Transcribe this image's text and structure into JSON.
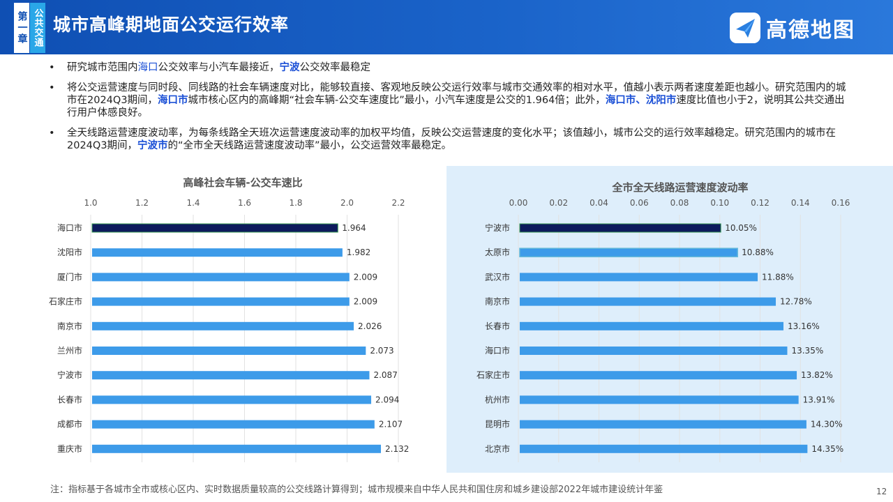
{
  "header": {
    "chapter_label": "第一章",
    "section_label": "公共交通",
    "title": "城市高峰期地面公交运行效率",
    "logo_text": "高德地图",
    "logo_icon": "gaode-map-logo-icon"
  },
  "bullets": [
    {
      "parts": [
        {
          "text": "研究城市范围内",
          "style": "normal"
        },
        {
          "text": "海口",
          "style": "blue"
        },
        {
          "text": "公交效率与小汽车最接近，",
          "style": "normal"
        },
        {
          "text": "宁波",
          "style": "bold-blue"
        },
        {
          "text": "公交效率最稳定",
          "style": "normal"
        }
      ]
    },
    {
      "parts": [
        {
          "text": "将公交运营速度与同时段、同线路的社会车辆速度对比，能够较直接、客观地反映公交运行效率与城市交通效率的相对水平，值越小表示两者速度差距也越小。研究范围内的城市在2024Q3期间，",
          "style": "normal"
        },
        {
          "text": "海口市",
          "style": "bold-blue"
        },
        {
          "text": "城市核心区内的高峰期“社会车辆-公交车速度比”最小，小汽车速度是公交的1.964倍；此外，",
          "style": "normal"
        },
        {
          "text": "海口市、沈阳市",
          "style": "bold-blue"
        },
        {
          "text": "速度比值也小于2，说明其公共交通出行用户体感良好。",
          "style": "normal"
        }
      ]
    },
    {
      "parts": [
        {
          "text": "全天线路运营速度波动率，为每条线路全天班次运营速度波动率的加权平均值，反映公交运营速度的变化水平；该值越小，城市公交的运行效率越稳定。研究范围内的城市在2024Q3期间，",
          "style": "normal"
        },
        {
          "text": "宁波市",
          "style": "bold-blue"
        },
        {
          "text": "的“全市全天线路运营速度波动率”最小，公交运营效率最稳定。",
          "style": "normal"
        }
      ]
    }
  ],
  "chart_data": [
    {
      "type": "bar",
      "orientation": "horizontal",
      "title": "高峰社会车辆-公交车速比",
      "categories": [
        "海口市",
        "沈阳市",
        "厦门市",
        "石家庄市",
        "南京市",
        "兰州市",
        "宁波市",
        "长春市",
        "成都市",
        "重庆市"
      ],
      "values": [
        1.964,
        1.982,
        2.009,
        2.009,
        2.026,
        2.073,
        2.087,
        2.094,
        2.107,
        2.132
      ],
      "data_labels": [
        "1.964",
        "1.982",
        "2.009",
        "2.009",
        "2.026",
        "2.073",
        "2.087",
        "2.094",
        "2.107",
        "2.132"
      ],
      "xlim": [
        1.0,
        2.2
      ],
      "xticks": [
        "1.0",
        "1.2",
        "1.4",
        "1.6",
        "1.8",
        "2.0",
        "2.2"
      ],
      "axis_position": "top",
      "grid": true,
      "colors": {
        "highlight": "#0d1a5c",
        "normal": "#3d9be9"
      },
      "highlight_index": 0
    },
    {
      "type": "bar",
      "orientation": "horizontal",
      "title": "全市全天线路运营速度波动率",
      "categories": [
        "宁波市",
        "太原市",
        "武汉市",
        "南京市",
        "长春市",
        "海口市",
        "石家庄市",
        "杭州市",
        "昆明市",
        "北京市"
      ],
      "values": [
        0.1005,
        0.1088,
        0.1188,
        0.1278,
        0.1316,
        0.1335,
        0.1382,
        0.1391,
        0.143,
        0.1435
      ],
      "data_labels": [
        "10.05%",
        "10.88%",
        "11.88%",
        "12.78%",
        "13.16%",
        "13.35%",
        "13.82%",
        "13.91%",
        "14.30%",
        "14.35%"
      ],
      "xlim": [
        0.0,
        0.16
      ],
      "xticks": [
        "0.00",
        "0.02",
        "0.04",
        "0.06",
        "0.08",
        "0.10",
        "0.12",
        "0.14",
        "0.16"
      ],
      "axis_position": "top",
      "grid": true,
      "colors": {
        "highlight": "#0d1a5c",
        "normal": "#3d9be9",
        "secondary": "#5fb6d9"
      },
      "highlight_index": 0,
      "secondary_index": 1
    }
  ],
  "footnote": "注：指标基于各城市全市或核心区内、实时数据质量较高的公交线路计算得到；城市规模来自中华人民共和国住房和城乡建设部2022年城市建设统计年鉴",
  "page_number": "12"
}
